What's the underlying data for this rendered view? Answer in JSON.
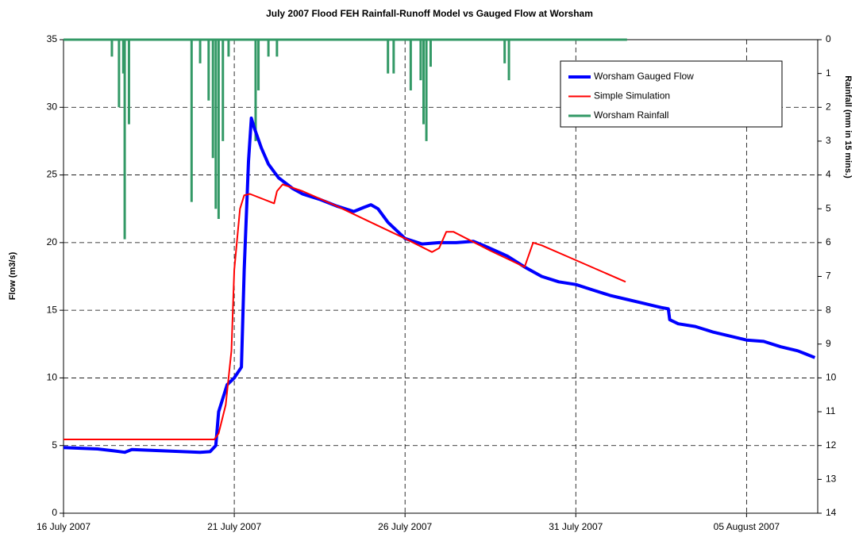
{
  "chart_data": {
    "type": "line",
    "title": "July 2007 Flood FEH Rainfall-Runoff Model vs Gauged Flow at Worsham",
    "ylabel": "Flow (m3/s)",
    "y2label": "Rainfall  (mm in 15 mins.)",
    "xlim": [
      "2007-07-16T00:00",
      "2007-08-07T02:00"
    ],
    "xticks": [
      {
        "value": "2007-07-16T00:00",
        "label": "16 July 2007"
      },
      {
        "value": "2007-07-21T00:00",
        "label": "21 July 2007"
      },
      {
        "value": "2007-07-26T00:00",
        "label": "26 July 2007"
      },
      {
        "value": "2007-07-31T00:00",
        "label": "31 July 2007"
      },
      {
        "value": "2007-08-05T00:00",
        "label": "05 August 2007"
      }
    ],
    "ylim": [
      0,
      35
    ],
    "yticks": [
      0,
      5,
      10,
      15,
      20,
      25,
      30,
      35
    ],
    "y2lim": [
      14,
      0
    ],
    "y2ticks": [
      0,
      1,
      2,
      3,
      4,
      5,
      6,
      7,
      8,
      9,
      10,
      11,
      12,
      13,
      14
    ],
    "grid": true,
    "legend": "upper right",
    "series": [
      {
        "name": "Worsham Gauged Flow",
        "color": "#0000ff",
        "width": 4,
        "x": [
          "2007-07-16T00:00",
          "2007-07-17T00:00",
          "2007-07-17T12:00",
          "2007-07-17T19:00",
          "2007-07-18T00:00",
          "2007-07-19T00:00",
          "2007-07-20T00:00",
          "2007-07-20T07:00",
          "2007-07-20T11:00",
          "2007-07-20T13:00",
          "2007-07-20T19:00",
          "2007-07-21T00:00",
          "2007-07-21T05:00",
          "2007-07-21T07:00",
          "2007-07-21T10:00",
          "2007-07-21T12:00",
          "2007-07-21T14:00",
          "2007-07-21T19:00",
          "2007-07-22T00:00",
          "2007-07-22T07:00",
          "2007-07-22T17:00",
          "2007-07-23T00:00",
          "2007-07-23T12:00",
          "2007-07-24T00:00",
          "2007-07-24T12:00",
          "2007-07-24T19:00",
          "2007-07-25T00:00",
          "2007-07-25T05:00",
          "2007-07-25T12:00",
          "2007-07-26T00:00",
          "2007-07-26T12:00",
          "2007-07-27T00:00",
          "2007-07-27T12:00",
          "2007-07-28T00:00",
          "2007-07-28T07:00",
          "2007-07-29T00:00",
          "2007-07-29T12:00",
          "2007-07-30T00:00",
          "2007-07-30T12:00",
          "2007-07-31T00:00",
          "2007-07-31T12:00",
          "2007-08-01T00:00",
          "2007-08-01T12:00",
          "2007-08-02T00:00",
          "2007-08-02T12:00",
          "2007-08-02T17:00",
          "2007-08-02T18:00",
          "2007-08-03T00:00",
          "2007-08-03T12:00",
          "2007-08-04T00:00",
          "2007-08-04T12:00",
          "2007-08-05T00:00",
          "2007-08-05T12:00",
          "2007-08-06T00:00",
          "2007-08-06T12:00",
          "2007-08-07T00:00"
        ],
        "values": [
          4.85,
          4.75,
          4.6,
          4.5,
          4.7,
          4.6,
          4.5,
          4.55,
          5,
          7.5,
          9.5,
          10,
          10.8,
          18,
          26,
          29.2,
          28.5,
          27,
          25.8,
          24.8,
          24,
          23.6,
          23.2,
          22.7,
          22.3,
          22.6,
          22.8,
          22.5,
          21.5,
          20.3,
          19.9,
          20,
          20,
          20.1,
          19.8,
          19,
          18.2,
          17.5,
          17.1,
          16.9,
          16.5,
          16.1,
          15.8,
          15.5,
          15.2,
          15.1,
          14.3,
          14,
          13.8,
          13.4,
          13.1,
          12.8,
          12.7,
          12.3,
          12,
          11.5
        ]
      },
      {
        "name": "Simple Simulation",
        "color": "#ff0000",
        "width": 2,
        "x": [
          "2007-07-16T00:00",
          "2007-07-20T10:00",
          "2007-07-20T13:00",
          "2007-07-20T18:00",
          "2007-07-20T22:00",
          "2007-07-21T00:00",
          "2007-07-21T04:00",
          "2007-07-21T07:00",
          "2007-07-21T11:00",
          "2007-07-22T04:00",
          "2007-07-22T06:00",
          "2007-07-22T10:00",
          "2007-07-23T00:00",
          "2007-07-24T00:00",
          "2007-07-25T00:00",
          "2007-07-26T00:00",
          "2007-07-26T19:00",
          "2007-07-27T00:00",
          "2007-07-27T05:00",
          "2007-07-27T10:00",
          "2007-07-28T12:00",
          "2007-07-29T12:00",
          "2007-07-29T18:00",
          "2007-07-30T00:00",
          "2007-07-31T00:00",
          "2007-08-01T11:00"
        ],
        "values": [
          5.45,
          5.45,
          5.9,
          8,
          12,
          18,
          22.5,
          23.5,
          23.6,
          22.9,
          23.8,
          24.3,
          23.8,
          22.7,
          21.5,
          20.3,
          19.3,
          19.6,
          20.8,
          20.8,
          19.4,
          18.2,
          20,
          19.8,
          18.7,
          17.1
        ]
      },
      {
        "name": "Worsham Rainfall",
        "color": "#339966",
        "width": 3,
        "axis": "y2",
        "x": [
          "2007-07-16T00:00",
          "2007-07-17T10:00",
          "2007-07-17T15:00",
          "2007-07-17T18:00",
          "2007-07-17T19:00",
          "2007-07-17T22:00",
          "2007-07-19T18:00",
          "2007-07-20T00:00",
          "2007-07-20T06:00",
          "2007-07-20T09:00",
          "2007-07-20T11:00",
          "2007-07-20T13:00",
          "2007-07-20T16:00",
          "2007-07-20T20:00",
          "2007-07-21T15:00",
          "2007-07-21T17:00",
          "2007-07-22T00:00",
          "2007-07-22T06:00",
          "2007-07-25T12:00",
          "2007-07-25T16:00",
          "2007-07-26T04:00",
          "2007-07-26T11:00",
          "2007-07-26T13:00",
          "2007-07-26T15:00",
          "2007-07-26T18:00",
          "2007-07-28T22:00",
          "2007-07-29T01:00",
          "2007-08-01T12:00"
        ],
        "values": [
          0,
          0.5,
          2,
          1,
          5.9,
          2.5,
          4.8,
          0.7,
          1.8,
          3.5,
          5,
          5.3,
          3,
          0.5,
          3,
          1.5,
          0.5,
          0.5,
          1,
          1,
          1.5,
          1.2,
          2.5,
          3,
          0.8,
          0.7,
          1.2,
          0
        ]
      }
    ]
  }
}
